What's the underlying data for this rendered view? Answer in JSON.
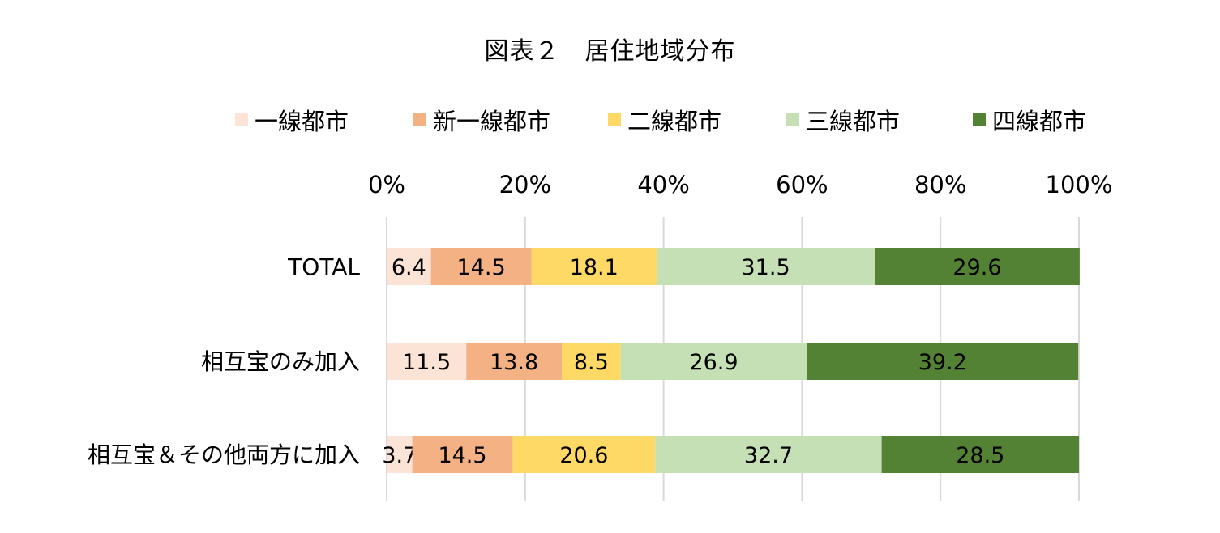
{
  "chart_data": {
    "type": "bar",
    "orientation": "horizontal",
    "stacked": "100%",
    "title": "図表２　居住地域分布",
    "categories": [
      "TOTAL",
      "相互宝のみ加入",
      "相互宝＆その他両方に加入"
    ],
    "series": [
      {
        "name": "一線都市",
        "color": "#FBE3D6",
        "values": [
          6.4,
          11.5,
          3.7
        ]
      },
      {
        "name": "新一線都市",
        "color": "#F4B183",
        "values": [
          14.5,
          13.8,
          14.5
        ]
      },
      {
        "name": "二線都市",
        "color": "#FFD966",
        "values": [
          18.1,
          8.5,
          20.6
        ]
      },
      {
        "name": "三線都市",
        "color": "#C5E0B4",
        "values": [
          31.5,
          26.9,
          32.7
        ]
      },
      {
        "name": "四線都市",
        "color": "#548235",
        "values": [
          29.6,
          39.2,
          28.5
        ]
      }
    ],
    "xlim": [
      0,
      100
    ],
    "x_ticks": [
      "0%",
      "20%",
      "40%",
      "60%",
      "80%",
      "100%"
    ],
    "x_axis_position": "top",
    "grid": true,
    "legend_position": "top",
    "data_labels": true
  }
}
